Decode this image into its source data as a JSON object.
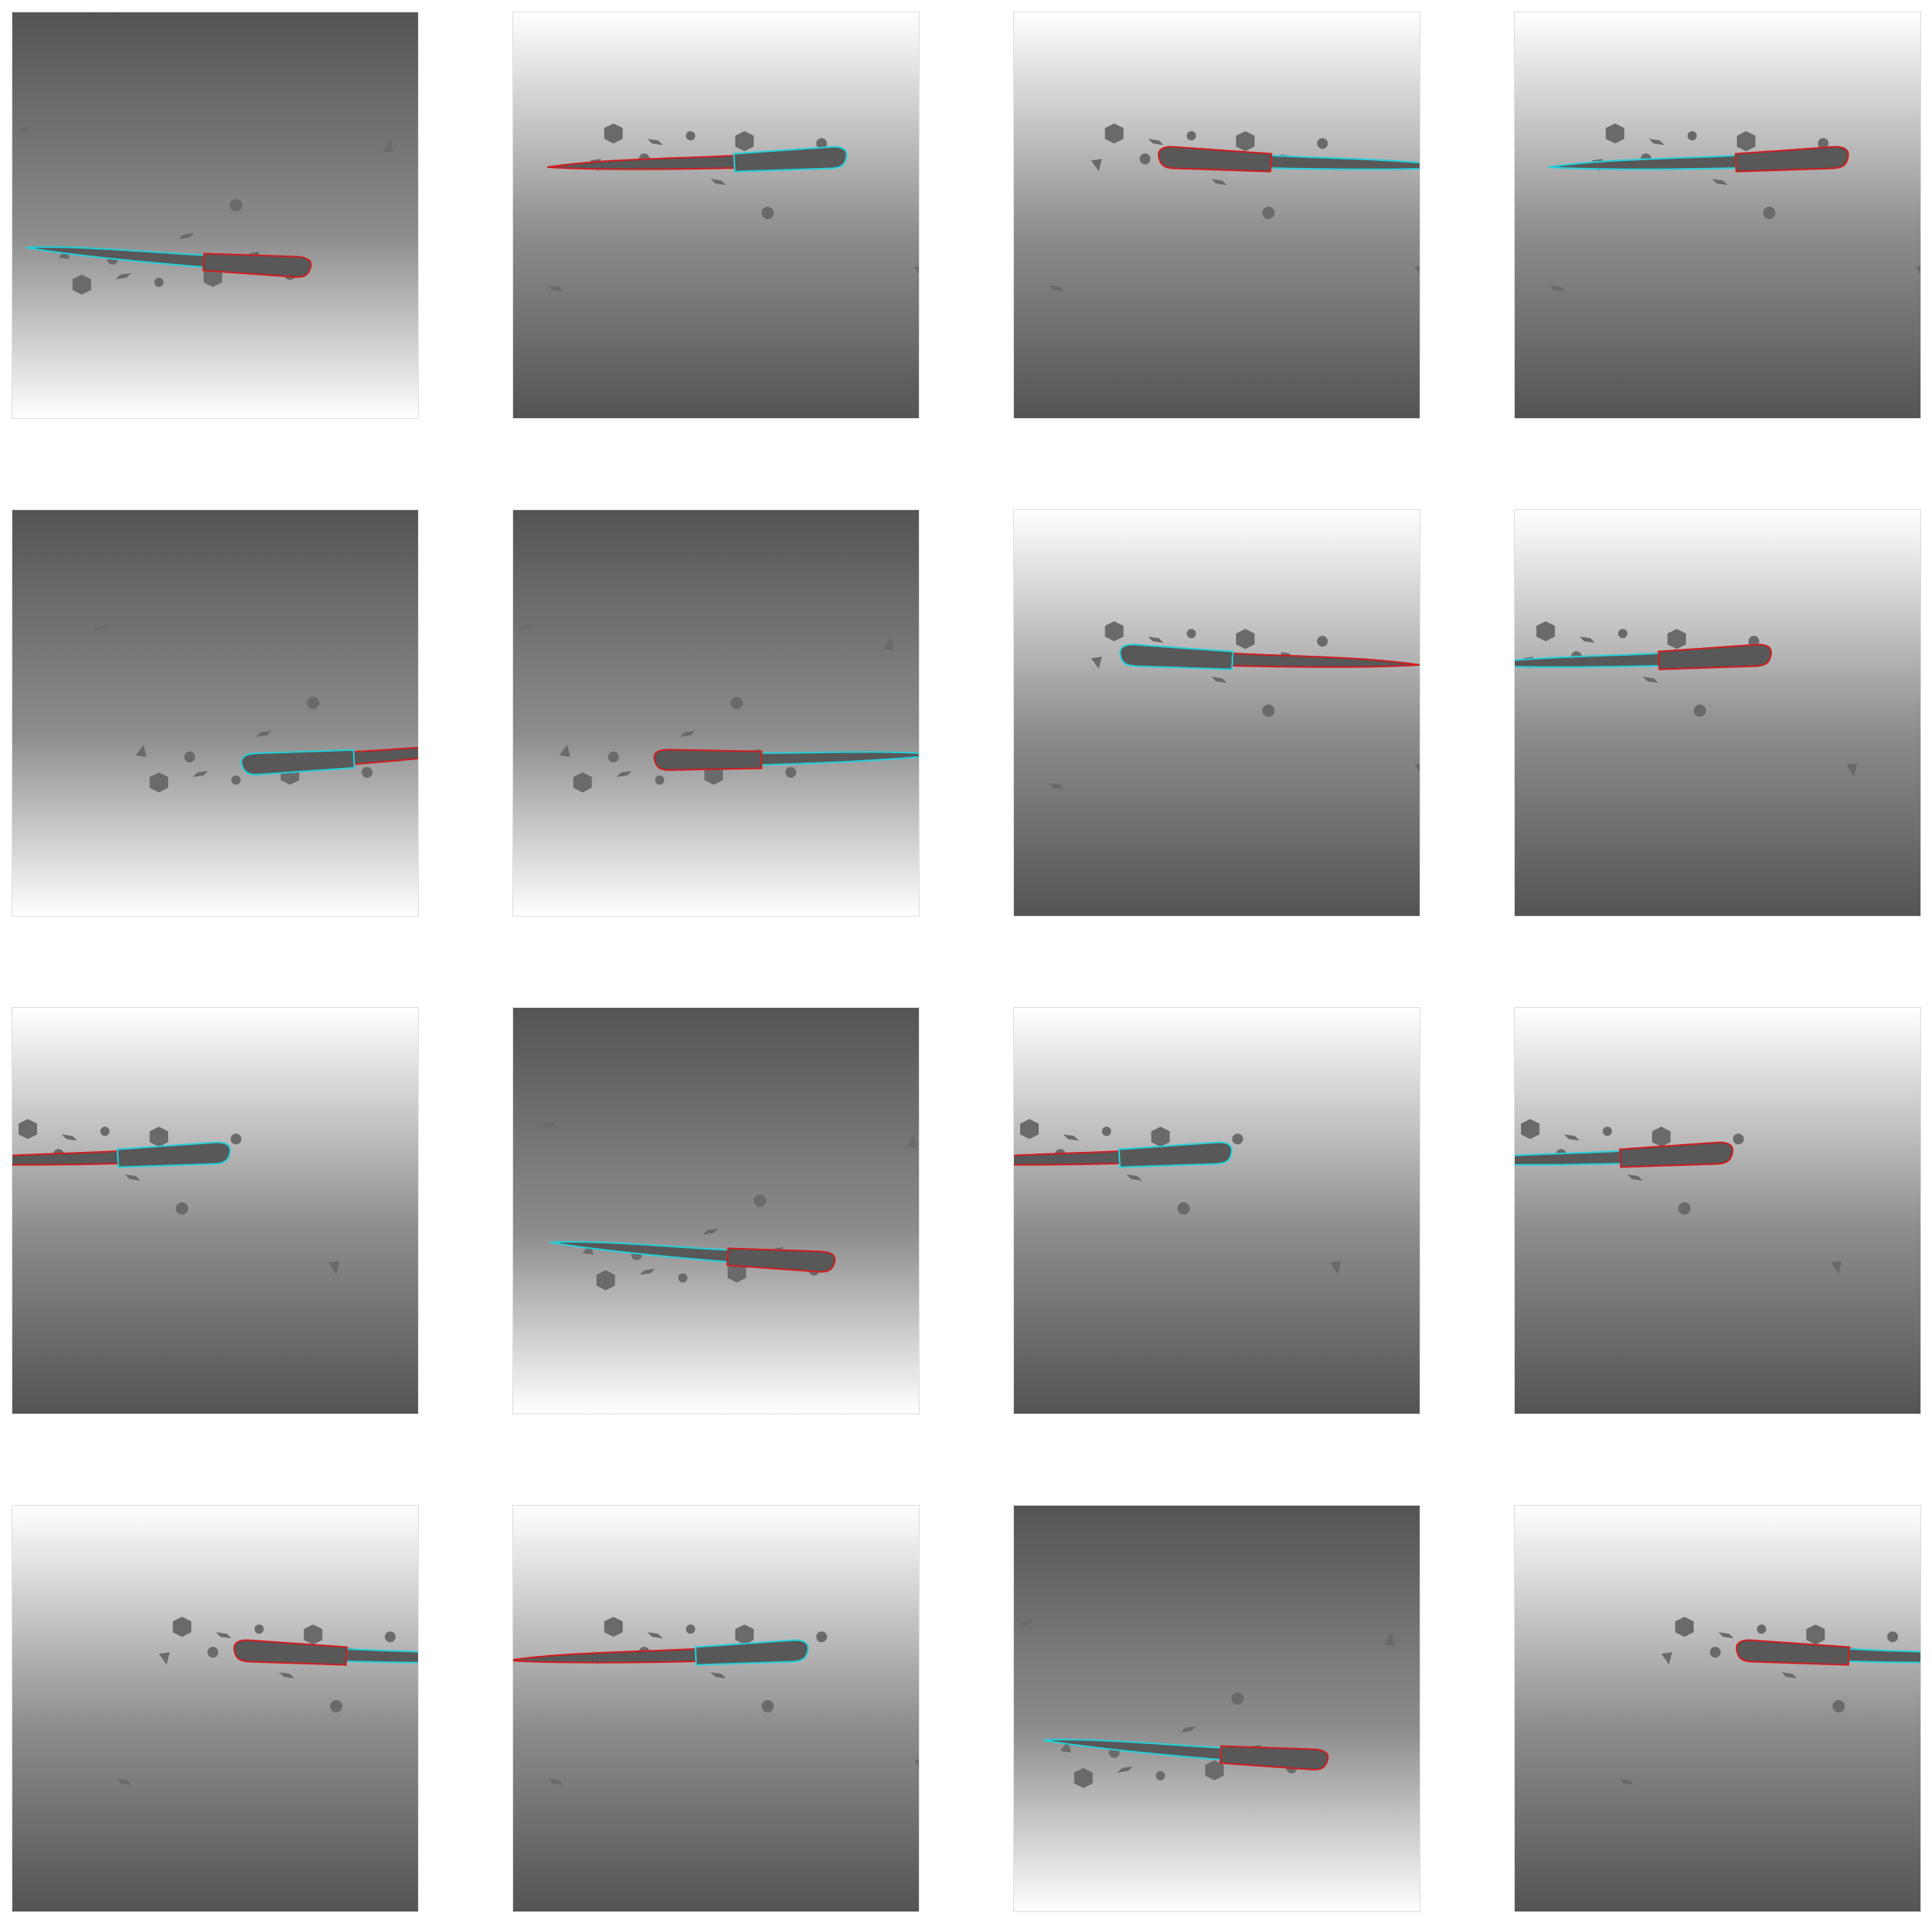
{
  "grid": {
    "rows": 4,
    "cols": 4
  },
  "colors": {
    "background": "#ffffff",
    "dark_gray": "#545454",
    "light_gray": "#ffffff",
    "distractor": "#6a6a6a",
    "knife_fill": "#585858",
    "outline_red": "#d01c1c",
    "outline_cyan": "#22d0dc"
  },
  "panels": [
    {
      "gradient": "dark-top",
      "handle": "right",
      "handle_color": "red",
      "blade_color": "cyan"
    },
    {
      "gradient": "light-top",
      "handle": "right",
      "handle_color": "cyan",
      "blade_color": "red"
    },
    {
      "gradient": "light-top",
      "handle": "left",
      "handle_color": "red",
      "blade_color": "cyan"
    },
    {
      "gradient": "light-top",
      "handle": "right",
      "handle_color": "red",
      "blade_color": "cyan"
    },
    {
      "gradient": "dark-top",
      "handle": "left",
      "handle_color": "cyan",
      "blade_color": "red"
    },
    {
      "gradient": "dark-top",
      "handle": "left",
      "handle_color": "red",
      "blade_color": "cyan"
    },
    {
      "gradient": "light-top",
      "handle": "left",
      "handle_color": "cyan",
      "blade_color": "red"
    },
    {
      "gradient": "light-top",
      "handle": "right",
      "handle_color": "red",
      "blade_color": "cyan"
    },
    {
      "gradient": "light-top",
      "handle": "right",
      "handle_color": "cyan",
      "blade_color": "red"
    },
    {
      "gradient": "dark-top",
      "handle": "right",
      "handle_color": "red",
      "blade_color": "cyan"
    },
    {
      "gradient": "light-top",
      "handle": "right",
      "handle_color": "cyan",
      "blade_color": "red"
    },
    {
      "gradient": "light-top",
      "handle": "right",
      "handle_color": "red",
      "blade_color": "cyan"
    },
    {
      "gradient": "light-top",
      "handle": "left",
      "handle_color": "red",
      "blade_color": "cyan"
    },
    {
      "gradient": "light-top",
      "handle": "right",
      "handle_color": "cyan",
      "blade_color": "red"
    },
    {
      "gradient": "dark-top",
      "handle": "right",
      "handle_color": "red",
      "blade_color": "cyan"
    },
    {
      "gradient": "light-top",
      "handle": "left",
      "handle_color": "red",
      "blade_color": "cyan"
    }
  ]
}
